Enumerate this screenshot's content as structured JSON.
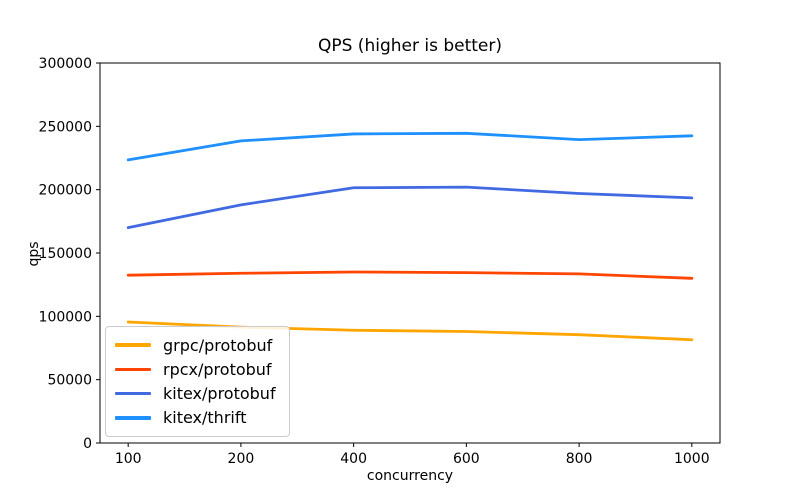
{
  "chart_data": {
    "type": "line",
    "title": "QPS (higher is better)",
    "xlabel": "concurrency",
    "ylabel": "qps",
    "categories": [
      "100",
      "200",
      "400",
      "600",
      "800",
      "1000"
    ],
    "y_ticks": [
      0,
      50000,
      100000,
      150000,
      200000,
      250000,
      300000
    ],
    "ylim": [
      0,
      300000
    ],
    "grid": false,
    "legend_position": "lower-left",
    "series": [
      {
        "name": "grpc/protobuf",
        "color": "#FFA500",
        "values": [
          95500,
          91500,
          89000,
          88000,
          85500,
          81500
        ]
      },
      {
        "name": "rpcx/protobuf",
        "color": "#FF4500",
        "values": [
          132500,
          134000,
          135000,
          134500,
          133500,
          130000
        ]
      },
      {
        "name": "kitex/protobuf",
        "color": "#4169E1",
        "values": [
          170000,
          188000,
          201500,
          202000,
          197000,
          193500
        ]
      },
      {
        "name": "kitex/thrift",
        "color": "#1E90FF",
        "values": [
          223500,
          238500,
          244000,
          244500,
          239500,
          242500
        ]
      }
    ]
  }
}
